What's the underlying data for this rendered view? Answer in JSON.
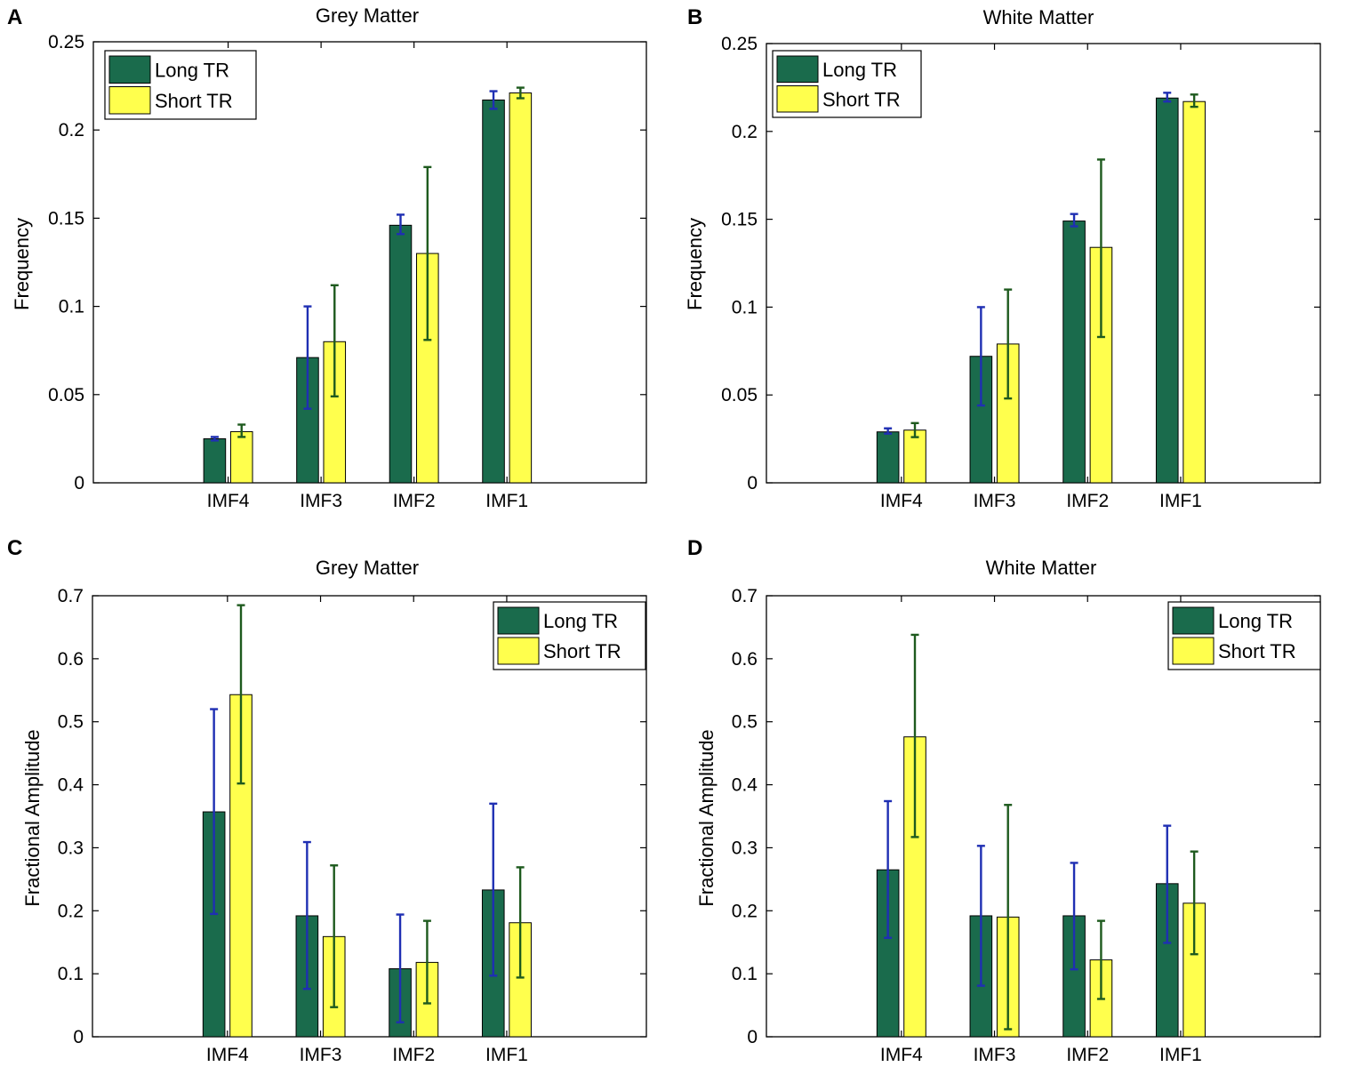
{
  "colors": {
    "long": "#1a6b4c",
    "short": "#ffff4d",
    "err_long": "#1f2fb3",
    "err_short": "#1e5a1e"
  },
  "chart_data": [
    {
      "panel": "A",
      "type": "bar",
      "title": "Grey Matter",
      "xlabel": "",
      "ylabel": "Frequency",
      "categories": [
        "IMF4",
        "IMF3",
        "IMF2",
        "IMF1"
      ],
      "ylim": [
        0,
        0.25
      ],
      "yticks": [
        0,
        0.05,
        0.1,
        0.15,
        0.2,
        0.25
      ],
      "ytick_labels": [
        "0",
        "0.05",
        "0.1",
        "0.15",
        "0.2",
        "0.25"
      ],
      "legend_position": "top-left",
      "series": [
        {
          "name": "Long TR",
          "values": [
            0.025,
            0.071,
            0.146,
            0.217
          ],
          "err_low": [
            0.024,
            0.042,
            0.141,
            0.212
          ],
          "err_high": [
            0.026,
            0.1,
            0.152,
            0.222
          ]
        },
        {
          "name": "Short TR",
          "values": [
            0.029,
            0.08,
            0.13,
            0.221
          ],
          "err_low": [
            0.026,
            0.049,
            0.081,
            0.218
          ],
          "err_high": [
            0.033,
            0.112,
            0.179,
            0.224
          ]
        }
      ]
    },
    {
      "panel": "B",
      "type": "bar",
      "title": "White Matter",
      "xlabel": "",
      "ylabel": "Frequency",
      "categories": [
        "IMF4",
        "IMF3",
        "IMF2",
        "IMF1"
      ],
      "ylim": [
        0,
        0.25
      ],
      "yticks": [
        0,
        0.05,
        0.1,
        0.15,
        0.2,
        0.25
      ],
      "ytick_labels": [
        "0",
        "0.05",
        "0.1",
        "0.15",
        "0.2",
        "0.25"
      ],
      "legend_position": "top-left",
      "series": [
        {
          "name": "Long TR",
          "values": [
            0.029,
            0.072,
            0.149,
            0.219
          ],
          "err_low": [
            0.028,
            0.044,
            0.146,
            0.217
          ],
          "err_high": [
            0.031,
            0.1,
            0.153,
            0.222
          ]
        },
        {
          "name": "Short TR",
          "values": [
            0.03,
            0.079,
            0.134,
            0.217
          ],
          "err_low": [
            0.026,
            0.048,
            0.083,
            0.214
          ],
          "err_high": [
            0.034,
            0.11,
            0.184,
            0.221
          ]
        }
      ]
    },
    {
      "panel": "C",
      "type": "bar",
      "title": "Grey Matter",
      "xlabel": "",
      "ylabel": "Fractional Amplitude",
      "categories": [
        "IMF4",
        "IMF3",
        "IMF2",
        "IMF1"
      ],
      "ylim": [
        0,
        0.7
      ],
      "yticks": [
        0,
        0.1,
        0.2,
        0.3,
        0.4,
        0.5,
        0.6,
        0.7
      ],
      "ytick_labels": [
        "0",
        "0.1",
        "0.2",
        "0.3",
        "0.4",
        "0.5",
        "0.6",
        "0.7"
      ],
      "legend_position": "top-right",
      "series": [
        {
          "name": "Long TR",
          "values": [
            0.357,
            0.192,
            0.108,
            0.233
          ],
          "err_low": [
            0.195,
            0.076,
            0.023,
            0.097
          ],
          "err_high": [
            0.52,
            0.309,
            0.194,
            0.37
          ]
        },
        {
          "name": "Short TR",
          "values": [
            0.543,
            0.159,
            0.118,
            0.181
          ],
          "err_low": [
            0.402,
            0.047,
            0.053,
            0.094
          ],
          "err_high": [
            0.685,
            0.272,
            0.184,
            0.269
          ]
        }
      ]
    },
    {
      "panel": "D",
      "type": "bar",
      "title": "White Matter",
      "xlabel": "",
      "ylabel": "Fractional Amplitude",
      "categories": [
        "IMF4",
        "IMF3",
        "IMF2",
        "IMF1"
      ],
      "ylim": [
        0,
        0.7
      ],
      "yticks": [
        0,
        0.1,
        0.2,
        0.3,
        0.4,
        0.5,
        0.6,
        0.7
      ],
      "ytick_labels": [
        "0",
        "0.1",
        "0.2",
        "0.3",
        "0.4",
        "0.5",
        "0.6",
        "0.7"
      ],
      "legend_position": "top-right",
      "series": [
        {
          "name": "Long TR",
          "values": [
            0.265,
            0.192,
            0.192,
            0.243
          ],
          "err_low": [
            0.157,
            0.081,
            0.107,
            0.149
          ],
          "err_high": [
            0.374,
            0.303,
            0.276,
            0.335
          ]
        },
        {
          "name": "Short TR",
          "values": [
            0.476,
            0.19,
            0.122,
            0.212
          ],
          "err_low": [
            0.317,
            0.012,
            0.06,
            0.131
          ],
          "err_high": [
            0.638,
            0.368,
            0.184,
            0.294
          ]
        }
      ]
    }
  ]
}
